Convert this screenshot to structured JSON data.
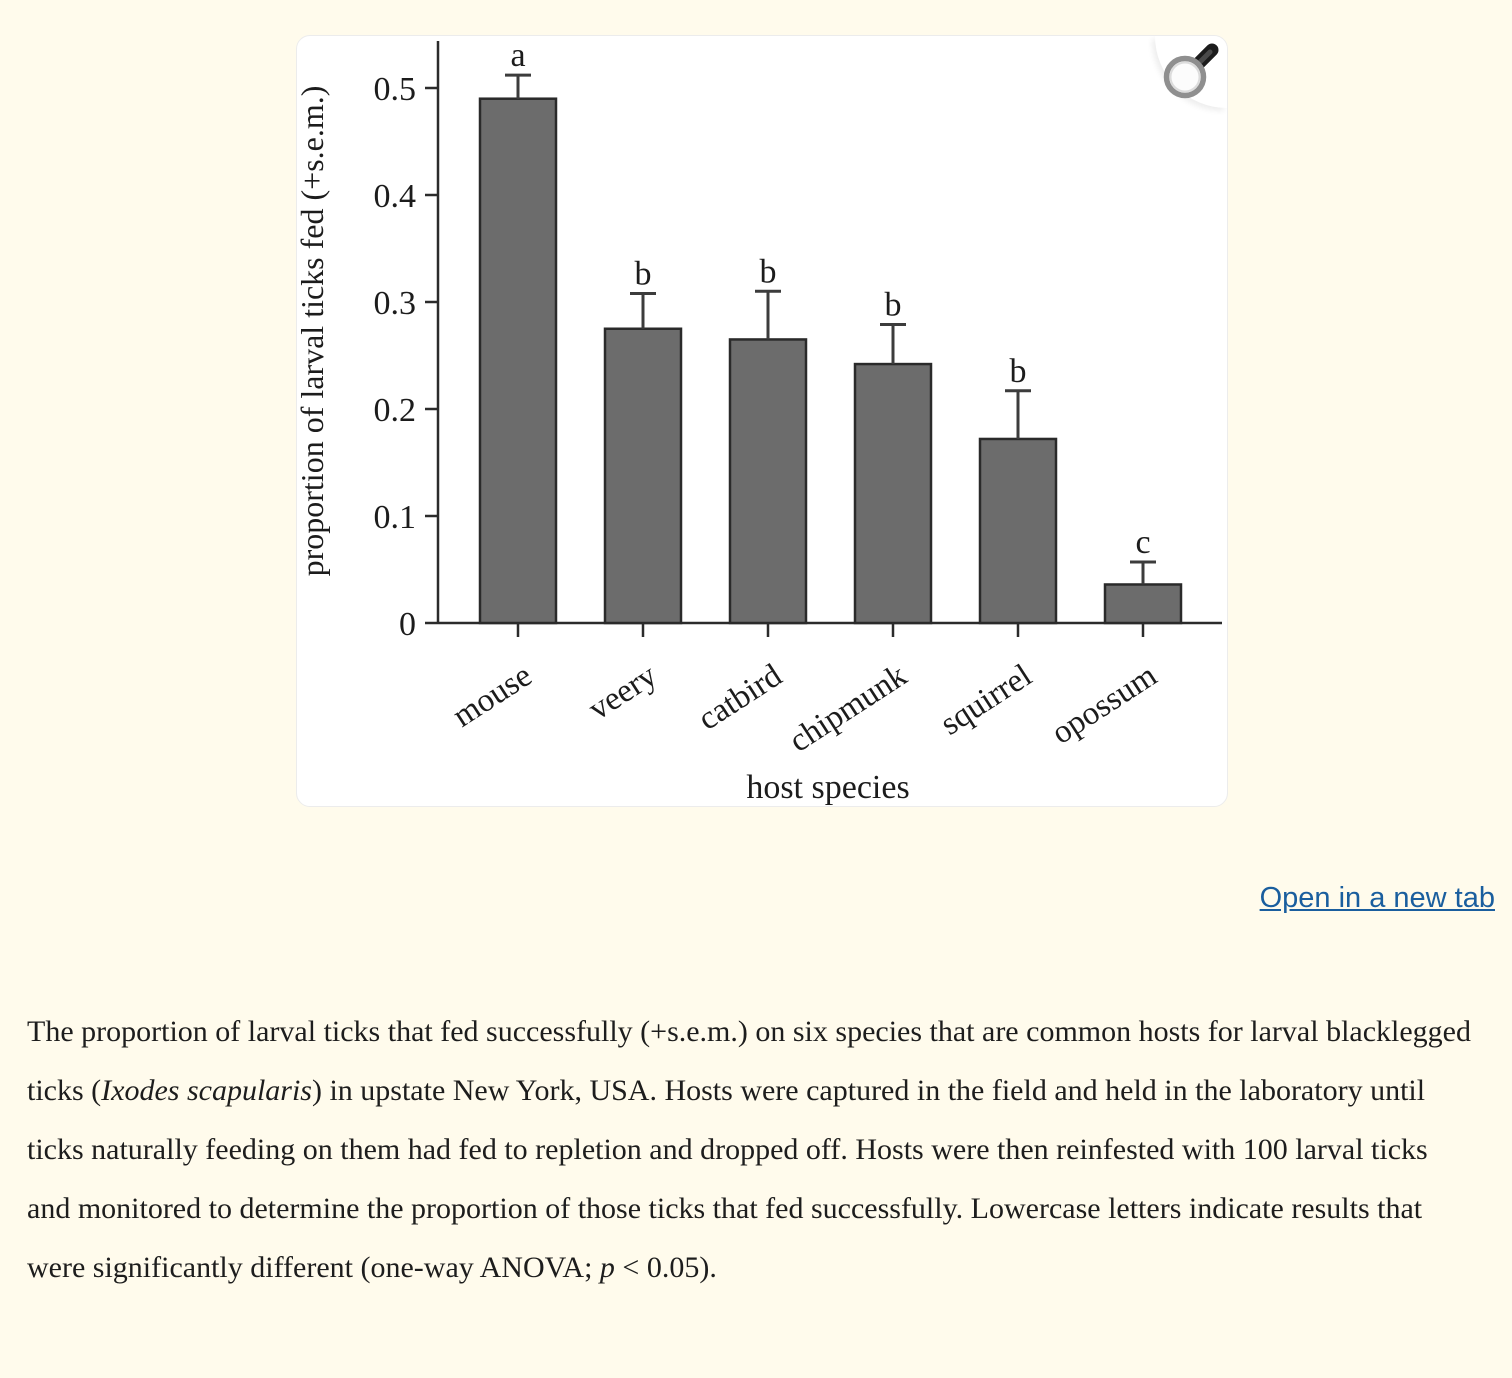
{
  "page": {
    "background_color": "#fffbec"
  },
  "figure": {
    "open_link_label": "Open in a new tab",
    "link_color": "#1a5e9e"
  },
  "caption": {
    "part1": "The proportion of larval ticks that fed successfully (+s.e.m.) on six species that are common hosts for larval blacklegged ticks (",
    "italic1": "Ixodes scapularis",
    "part2": ") in upstate New York, USA. Hosts were captured in the field and held in the laboratory until ticks naturally feeding on them had fed to repletion and dropped off. Hosts were then reinfested with 100 larval ticks and monitored to determine the proportion of those ticks that fed successfully. Lowercase letters indicate results that were significantly different (one-way ANOVA; ",
    "italic2": "p",
    "part3": " < 0.05)."
  },
  "chart_data": {
    "type": "bar",
    "title": "",
    "xlabel": "host species",
    "ylabel": "proportion of larval ticks fed (+s.e.m.)",
    "categories": [
      "mouse",
      "veery",
      "catbird",
      "chipmunk",
      "squirrel",
      "opossum"
    ],
    "values": [
      0.49,
      0.275,
      0.265,
      0.242,
      0.172,
      0.036
    ],
    "sem": [
      0.022,
      0.033,
      0.045,
      0.037,
      0.045,
      0.021
    ],
    "sig_letters": [
      "a",
      "b",
      "b",
      "b",
      "b",
      "c"
    ],
    "yticks": [
      0,
      0.1,
      0.2,
      0.3,
      0.4,
      0.5
    ],
    "ytick_labels": [
      "0",
      "0.1",
      "0.2",
      "0.3",
      "0.4",
      "0.5"
    ],
    "ylim": [
      0,
      0.55
    ],
    "grid": false,
    "legend": null,
    "bar_color": "#6c6c6c",
    "bar_edge_color": "#2a2a2a",
    "error_bar_color": "#3c3c3c",
    "axis_color": "#2b2b2b",
    "text_color": "#1c1c1c"
  }
}
